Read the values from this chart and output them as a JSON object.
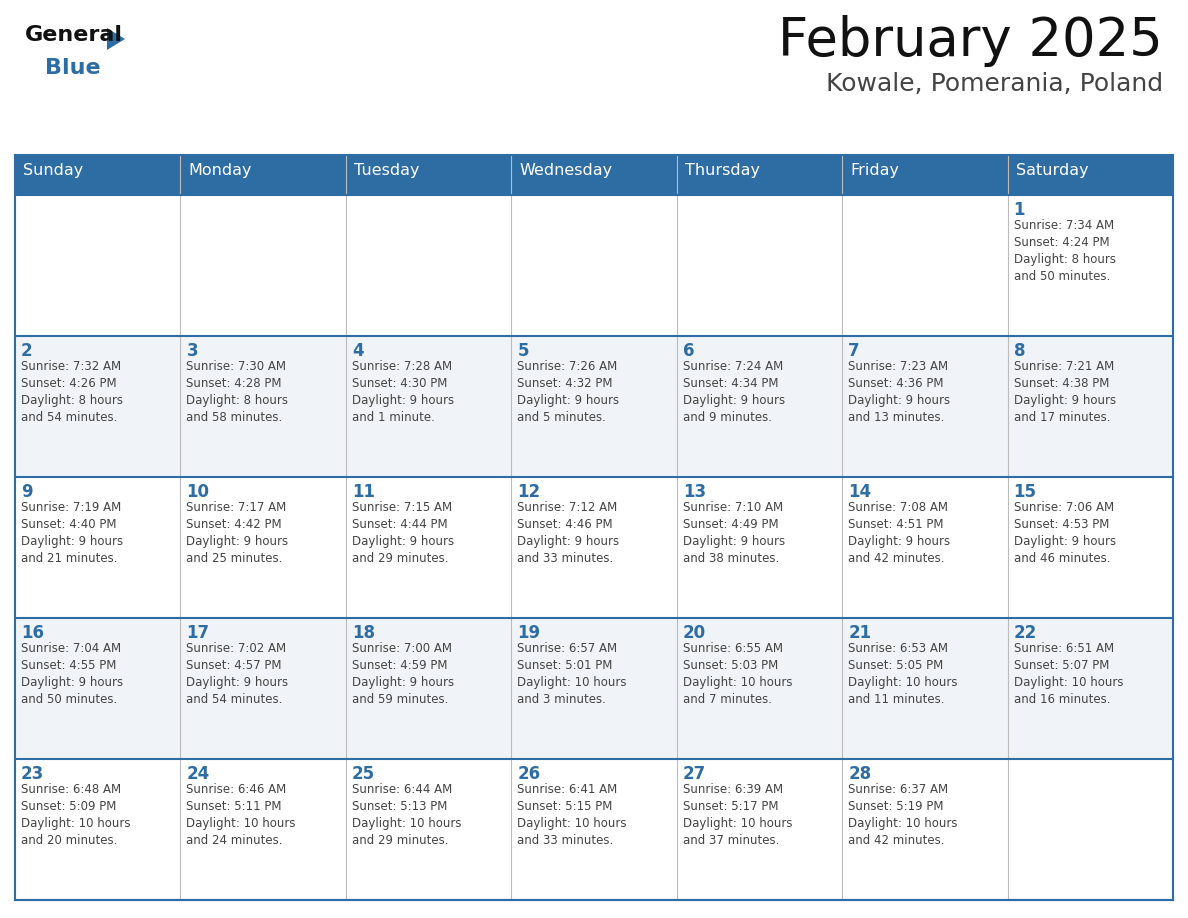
{
  "title": "February 2025",
  "subtitle": "Kowale, Pomerania, Poland",
  "days_of_week": [
    "Sunday",
    "Monday",
    "Tuesday",
    "Wednesday",
    "Thursday",
    "Friday",
    "Saturday"
  ],
  "header_bg_color": "#2E6DA4",
  "header_text_color": "#FFFFFF",
  "cell_bg_even": "#FFFFFF",
  "cell_bg_odd": "#F0F4F8",
  "border_color": "#2E6DA4",
  "day_number_color": "#2E6DA4",
  "cell_text_color": "#444444",
  "title_color": "#111111",
  "subtitle_color": "#444444",
  "logo_general_color": "#111111",
  "logo_blue_color": "#2E6DA4",
  "weeks": [
    {
      "days": [
        {
          "day": null,
          "info": null
        },
        {
          "day": null,
          "info": null
        },
        {
          "day": null,
          "info": null
        },
        {
          "day": null,
          "info": null
        },
        {
          "day": null,
          "info": null
        },
        {
          "day": null,
          "info": null
        },
        {
          "day": 1,
          "info": "Sunrise: 7:34 AM\nSunset: 4:24 PM\nDaylight: 8 hours\nand 50 minutes."
        }
      ]
    },
    {
      "days": [
        {
          "day": 2,
          "info": "Sunrise: 7:32 AM\nSunset: 4:26 PM\nDaylight: 8 hours\nand 54 minutes."
        },
        {
          "day": 3,
          "info": "Sunrise: 7:30 AM\nSunset: 4:28 PM\nDaylight: 8 hours\nand 58 minutes."
        },
        {
          "day": 4,
          "info": "Sunrise: 7:28 AM\nSunset: 4:30 PM\nDaylight: 9 hours\nand 1 minute."
        },
        {
          "day": 5,
          "info": "Sunrise: 7:26 AM\nSunset: 4:32 PM\nDaylight: 9 hours\nand 5 minutes."
        },
        {
          "day": 6,
          "info": "Sunrise: 7:24 AM\nSunset: 4:34 PM\nDaylight: 9 hours\nand 9 minutes."
        },
        {
          "day": 7,
          "info": "Sunrise: 7:23 AM\nSunset: 4:36 PM\nDaylight: 9 hours\nand 13 minutes."
        },
        {
          "day": 8,
          "info": "Sunrise: 7:21 AM\nSunset: 4:38 PM\nDaylight: 9 hours\nand 17 minutes."
        }
      ]
    },
    {
      "days": [
        {
          "day": 9,
          "info": "Sunrise: 7:19 AM\nSunset: 4:40 PM\nDaylight: 9 hours\nand 21 minutes."
        },
        {
          "day": 10,
          "info": "Sunrise: 7:17 AM\nSunset: 4:42 PM\nDaylight: 9 hours\nand 25 minutes."
        },
        {
          "day": 11,
          "info": "Sunrise: 7:15 AM\nSunset: 4:44 PM\nDaylight: 9 hours\nand 29 minutes."
        },
        {
          "day": 12,
          "info": "Sunrise: 7:12 AM\nSunset: 4:46 PM\nDaylight: 9 hours\nand 33 minutes."
        },
        {
          "day": 13,
          "info": "Sunrise: 7:10 AM\nSunset: 4:49 PM\nDaylight: 9 hours\nand 38 minutes."
        },
        {
          "day": 14,
          "info": "Sunrise: 7:08 AM\nSunset: 4:51 PM\nDaylight: 9 hours\nand 42 minutes."
        },
        {
          "day": 15,
          "info": "Sunrise: 7:06 AM\nSunset: 4:53 PM\nDaylight: 9 hours\nand 46 minutes."
        }
      ]
    },
    {
      "days": [
        {
          "day": 16,
          "info": "Sunrise: 7:04 AM\nSunset: 4:55 PM\nDaylight: 9 hours\nand 50 minutes."
        },
        {
          "day": 17,
          "info": "Sunrise: 7:02 AM\nSunset: 4:57 PM\nDaylight: 9 hours\nand 54 minutes."
        },
        {
          "day": 18,
          "info": "Sunrise: 7:00 AM\nSunset: 4:59 PM\nDaylight: 9 hours\nand 59 minutes."
        },
        {
          "day": 19,
          "info": "Sunrise: 6:57 AM\nSunset: 5:01 PM\nDaylight: 10 hours\nand 3 minutes."
        },
        {
          "day": 20,
          "info": "Sunrise: 6:55 AM\nSunset: 5:03 PM\nDaylight: 10 hours\nand 7 minutes."
        },
        {
          "day": 21,
          "info": "Sunrise: 6:53 AM\nSunset: 5:05 PM\nDaylight: 10 hours\nand 11 minutes."
        },
        {
          "day": 22,
          "info": "Sunrise: 6:51 AM\nSunset: 5:07 PM\nDaylight: 10 hours\nand 16 minutes."
        }
      ]
    },
    {
      "days": [
        {
          "day": 23,
          "info": "Sunrise: 6:48 AM\nSunset: 5:09 PM\nDaylight: 10 hours\nand 20 minutes."
        },
        {
          "day": 24,
          "info": "Sunrise: 6:46 AM\nSunset: 5:11 PM\nDaylight: 10 hours\nand 24 minutes."
        },
        {
          "day": 25,
          "info": "Sunrise: 6:44 AM\nSunset: 5:13 PM\nDaylight: 10 hours\nand 29 minutes."
        },
        {
          "day": 26,
          "info": "Sunrise: 6:41 AM\nSunset: 5:15 PM\nDaylight: 10 hours\nand 33 minutes."
        },
        {
          "day": 27,
          "info": "Sunrise: 6:39 AM\nSunset: 5:17 PM\nDaylight: 10 hours\nand 37 minutes."
        },
        {
          "day": 28,
          "info": "Sunrise: 6:37 AM\nSunset: 5:19 PM\nDaylight: 10 hours\nand 42 minutes."
        },
        {
          "day": null,
          "info": null
        }
      ]
    }
  ]
}
